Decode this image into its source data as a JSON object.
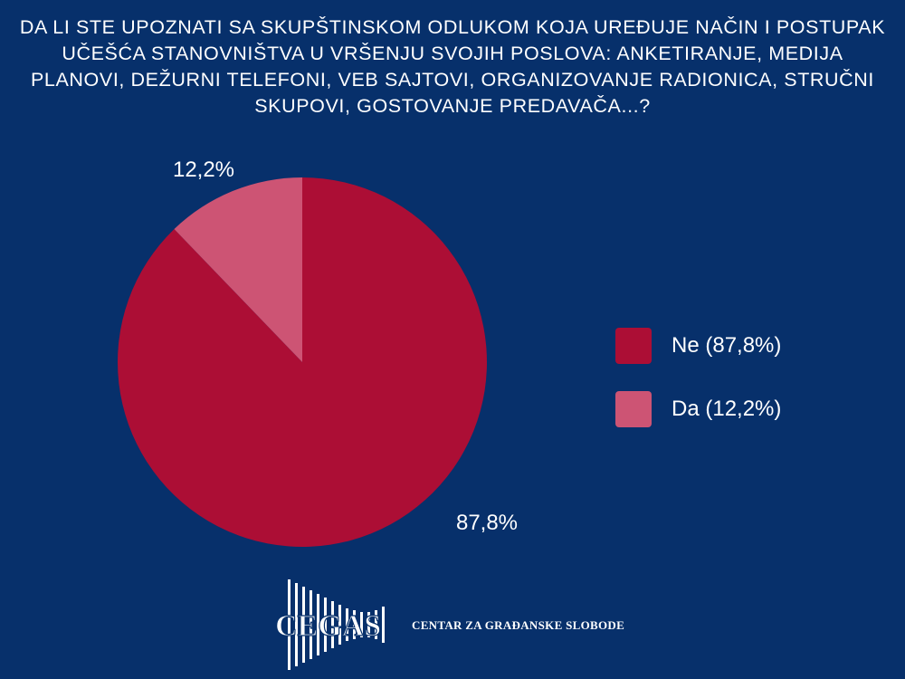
{
  "title": "Da li ste upoznati sa skupštinskom odlukom koja uređuje način i postupak učešća stanovništva u vršenju svojih poslova: anketiranje, medija planovi, dežurni telefoni, veb sajtovi, organizovanje radionica, stručni skupovi, gostovanje predavača...?",
  "chart_data": {
    "type": "pie",
    "slices": [
      {
        "label": "Ne",
        "value": 87.8,
        "value_label": "87,8%",
        "legend": "Ne (87,8%)",
        "color": "#ac0e35"
      },
      {
        "label": "Da",
        "value": 12.2,
        "value_label": "12,2%",
        "legend": "Da (12,2%)",
        "color": "#cd5474"
      }
    ],
    "legend_position": "right"
  },
  "logo": {
    "name": "CEGAS",
    "caption": "CENTAR ZA GRAĐANSKE SLOBODE"
  }
}
